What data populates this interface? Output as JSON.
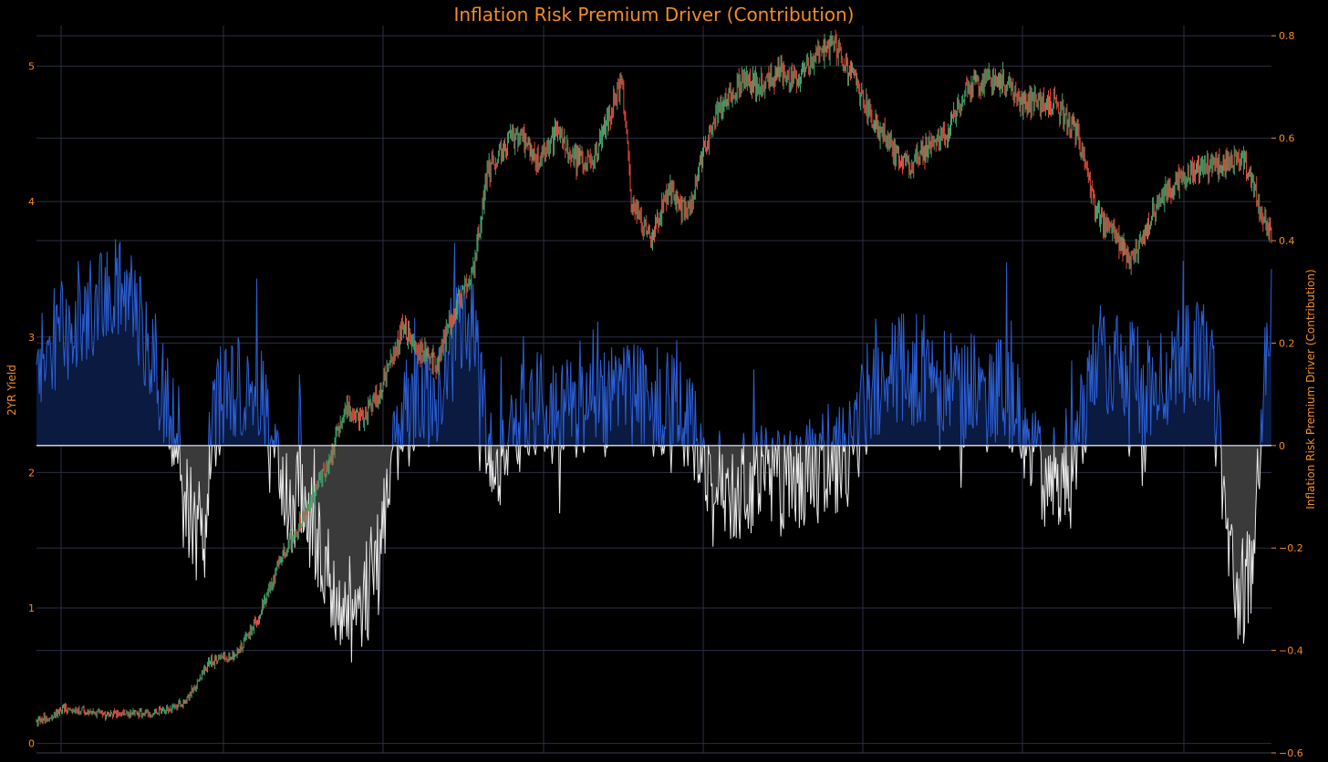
{
  "chart_data": {
    "type": "line",
    "title": "Inflation Risk Premium Driver (Contribution)",
    "left_axis": {
      "label": "2YR Yield",
      "ylim": [
        -0.07,
        5.3
      ],
      "ticks": [
        "0",
        "1",
        "2",
        "3",
        "4",
        "5"
      ],
      "tick_values": [
        0,
        1,
        2,
        3,
        4,
        5
      ]
    },
    "right_axis": {
      "label": "Inflation Risk Premium Driver (Contribution)",
      "ylim": [
        -0.6,
        0.82
      ],
      "ticks": [
        "−0.6",
        "−0.4",
        "−0.2",
        "0",
        "0.2",
        "0.4",
        "0.6",
        "0.8"
      ],
      "tick_values": [
        -0.6,
        -0.4,
        -0.2,
        0,
        0.2,
        0.4,
        0.6,
        0.8
      ]
    },
    "x_count": 1330,
    "grid": true,
    "legend": "none",
    "series": [
      {
        "kind": "candlestick",
        "axis": "left",
        "up_color": "#3fa96f",
        "down_color": "#e8473c",
        "approx_close_path": [
          [
            0,
            0.16
          ],
          [
            15,
            0.2
          ],
          [
            30,
            0.26
          ],
          [
            50,
            0.25
          ],
          [
            75,
            0.21
          ],
          [
            100,
            0.22
          ],
          [
            130,
            0.23
          ],
          [
            160,
            0.3
          ],
          [
            185,
            0.6
          ],
          [
            215,
            0.65
          ],
          [
            240,
            0.95
          ],
          [
            265,
            1.4
          ],
          [
            290,
            1.7
          ],
          [
            315,
            2.1
          ],
          [
            335,
            2.5
          ],
          [
            350,
            2.4
          ],
          [
            370,
            2.6
          ],
          [
            385,
            2.9
          ],
          [
            395,
            3.1
          ],
          [
            410,
            2.9
          ],
          [
            430,
            2.8
          ],
          [
            450,
            3.2
          ],
          [
            470,
            3.5
          ],
          [
            485,
            4.2
          ],
          [
            500,
            4.4
          ],
          [
            520,
            4.5
          ],
          [
            540,
            4.3
          ],
          [
            560,
            4.5
          ],
          [
            580,
            4.3
          ],
          [
            600,
            4.3
          ],
          [
            615,
            4.6
          ],
          [
            630,
            4.9
          ],
          [
            640,
            4.0
          ],
          [
            660,
            3.7
          ],
          [
            680,
            4.1
          ],
          [
            700,
            3.9
          ],
          [
            715,
            4.3
          ],
          [
            735,
            4.7
          ],
          [
            760,
            4.9
          ],
          [
            780,
            4.85
          ],
          [
            800,
            4.95
          ],
          [
            820,
            4.9
          ],
          [
            840,
            5.1
          ],
          [
            860,
            5.15
          ],
          [
            880,
            4.9
          ],
          [
            900,
            4.6
          ],
          [
            920,
            4.4
          ],
          [
            940,
            4.25
          ],
          [
            960,
            4.4
          ],
          [
            980,
            4.5
          ],
          [
            1000,
            4.8
          ],
          [
            1020,
            4.9
          ],
          [
            1040,
            4.9
          ],
          [
            1060,
            4.7
          ],
          [
            1080,
            4.75
          ],
          [
            1100,
            4.7
          ],
          [
            1120,
            4.5
          ],
          [
            1140,
            3.9
          ],
          [
            1160,
            3.75
          ],
          [
            1180,
            3.55
          ],
          [
            1200,
            3.9
          ],
          [
            1220,
            4.1
          ],
          [
            1240,
            4.2
          ],
          [
            1260,
            4.25
          ],
          [
            1280,
            4.3
          ],
          [
            1300,
            4.3
          ],
          [
            1315,
            4.0
          ],
          [
            1330,
            3.7
          ]
        ]
      },
      {
        "kind": "area_line",
        "axis": "right",
        "positive_line_color": "#2c5fd6",
        "positive_fill": "#0a1a40",
        "negative_line_color": "#e8e8e8",
        "negative_fill": "#3a3a3a",
        "regime_path": [
          [
            0,
            0.15
          ],
          [
            40,
            0.25
          ],
          [
            80,
            0.3
          ],
          [
            100,
            0.3
          ],
          [
            120,
            0.2
          ],
          [
            150,
            0.04
          ],
          [
            165,
            -0.12
          ],
          [
            180,
            -0.2
          ],
          [
            190,
            0.06
          ],
          [
            210,
            0.12
          ],
          [
            240,
            0.1
          ],
          [
            260,
            -0.08
          ],
          [
            290,
            -0.12
          ],
          [
            310,
            -0.25
          ],
          [
            330,
            -0.35
          ],
          [
            350,
            -0.3
          ],
          [
            370,
            -0.22
          ],
          [
            390,
            0.05
          ],
          [
            410,
            0.08
          ],
          [
            430,
            0.1
          ],
          [
            450,
            0.2
          ],
          [
            470,
            0.22
          ],
          [
            490,
            -0.05
          ],
          [
            510,
            0.04
          ],
          [
            540,
            0.08
          ],
          [
            570,
            0.06
          ],
          [
            600,
            0.05
          ],
          [
            630,
            0.12
          ],
          [
            660,
            0.08
          ],
          [
            690,
            0.1
          ],
          [
            720,
            -0.04
          ],
          [
            750,
            -0.08
          ],
          [
            780,
            -0.06
          ],
          [
            810,
            -0.08
          ],
          [
            840,
            -0.05
          ],
          [
            870,
            -0.03
          ],
          [
            900,
            0.12
          ],
          [
            930,
            0.15
          ],
          [
            960,
            0.15
          ],
          [
            990,
            0.1
          ],
          [
            1020,
            0.12
          ],
          [
            1050,
            0.08
          ],
          [
            1080,
            -0.06
          ],
          [
            1110,
            -0.08
          ],
          [
            1140,
            0.18
          ],
          [
            1170,
            0.15
          ],
          [
            1200,
            0.12
          ],
          [
            1230,
            0.16
          ],
          [
            1260,
            0.2
          ],
          [
            1280,
            -0.12
          ],
          [
            1295,
            -0.3
          ],
          [
            1310,
            -0.22
          ],
          [
            1320,
            0.1
          ],
          [
            1330,
            0.25
          ]
        ]
      }
    ]
  }
}
